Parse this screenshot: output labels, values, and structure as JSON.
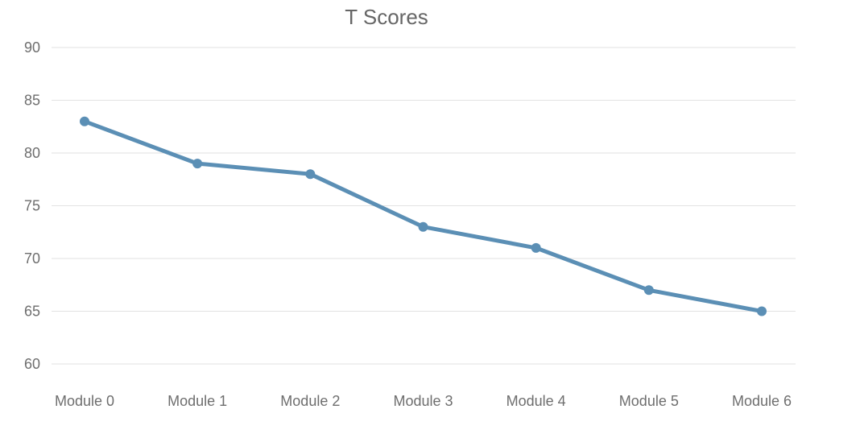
{
  "chart_data": {
    "type": "line",
    "title": "T Scores",
    "xlabel": "",
    "ylabel": "",
    "categories": [
      "Module 0",
      "Module 1",
      "Module 2",
      "Module 3",
      "Module 4",
      "Module 5",
      "Module 6"
    ],
    "series": [
      {
        "values": [
          83,
          79,
          78,
          73,
          71,
          67,
          65
        ],
        "color": "#5b8fb5"
      }
    ],
    "ylim": [
      60,
      90
    ],
    "yticks": [
      60,
      65,
      70,
      75,
      80,
      85,
      90
    ],
    "grid": true,
    "legend": "none",
    "markers": true
  }
}
